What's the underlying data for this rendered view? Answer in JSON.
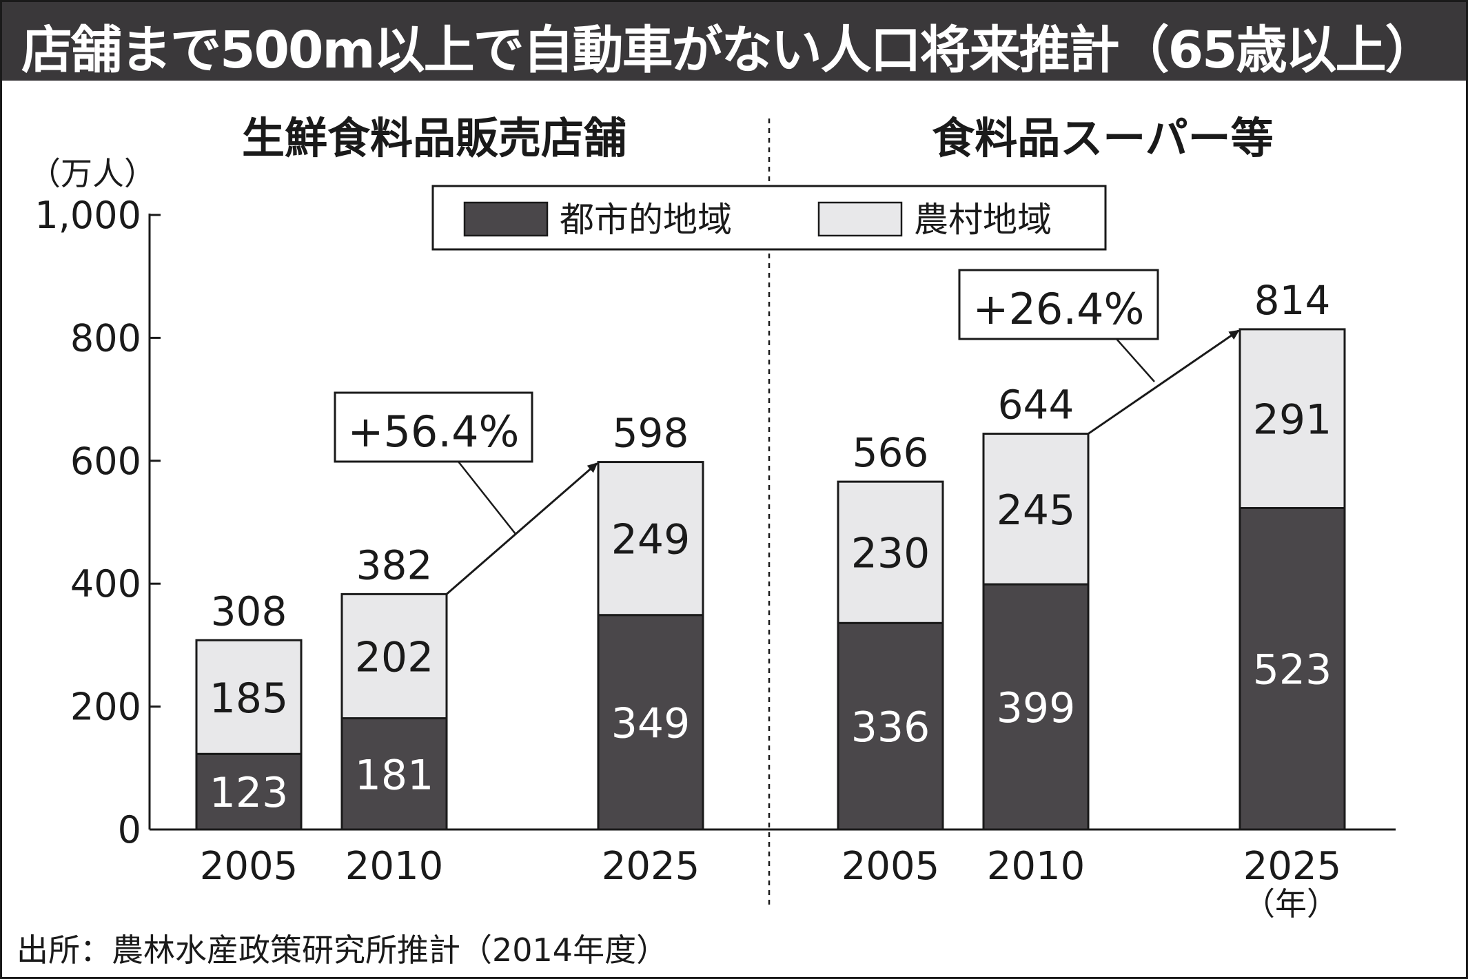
{
  "title": "店舗まで500m以上で自動車がない人口将来推計（65歳以上）",
  "source": "出所：農林水産政策研究所推計（2014年度）",
  "colors": {
    "title_bg": "#3a383a",
    "urban": "#4a474a",
    "rural": "#e8e8ea",
    "ink": "#1a1a1a"
  },
  "chart_data": {
    "type": "bar",
    "stacked": true,
    "unit_label": "（万人）",
    "year_unit": "（年）",
    "ylim": [
      0,
      1000
    ],
    "yticks": [
      "0",
      "200",
      "400",
      "600",
      "800",
      "1,000"
    ],
    "legend": {
      "placement": "top-center",
      "items": [
        "都市的地域",
        "農村地域"
      ]
    },
    "panels": [
      {
        "title": "生鮮食料品販売店舗",
        "categories": [
          "2005",
          "2010",
          "2025"
        ],
        "series": [
          {
            "name": "都市的地域",
            "values": [
              123,
              181,
              349
            ]
          },
          {
            "name": "農村地域",
            "values": [
              185,
              202,
              249
            ]
          }
        ],
        "totals": [
          308,
          382,
          598
        ],
        "annotation": "+56.4%"
      },
      {
        "title": "食料品スーパー等",
        "categories": [
          "2005",
          "2010",
          "2025"
        ],
        "series": [
          {
            "name": "都市的地域",
            "values": [
              336,
              399,
              523
            ]
          },
          {
            "name": "農村地域",
            "values": [
              230,
              245,
              291
            ]
          }
        ],
        "totals": [
          566,
          644,
          814
        ],
        "annotation": "+26.4%"
      }
    ]
  }
}
